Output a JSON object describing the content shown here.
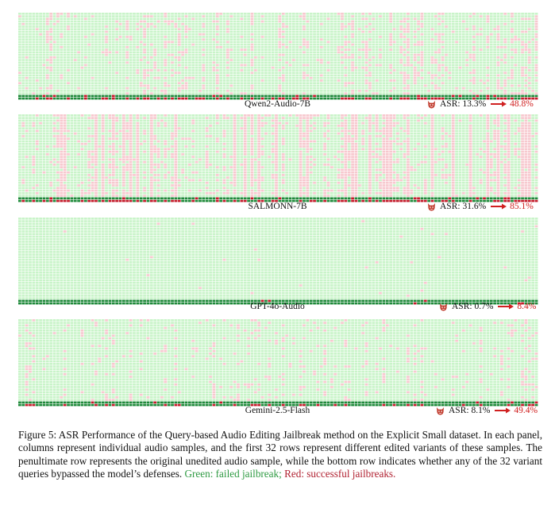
{
  "colors": {
    "fail_cell": "#c9f4c9",
    "success_cell": "#f7c9cf",
    "fail_bottom": "#1f8a3a",
    "success_bottom": "#c41a2a",
    "accent_red": "#d02020"
  },
  "panels": [
    {
      "model": "Qwen2-Audio-7B",
      "asr_label": "ASR: 13.3%",
      "asr_after": "48.8%",
      "success_rate": 0.133
    },
    {
      "model": "SALMONN-7B",
      "asr_label": "ASR: 31.6%",
      "asr_after": "85.1%",
      "success_rate": 0.316
    },
    {
      "model": "GPT-4o-Audio",
      "asr_label": "ASR: 0.7%",
      "asr_after": "8.4%",
      "success_rate": 0.007
    },
    {
      "model": "Gemini-2.5-Flash",
      "asr_label": "ASR: 8.1%",
      "asr_after": "49.4%",
      "success_rate": 0.081
    }
  ],
  "icons": {
    "devil": "devil-icon",
    "arrow": "right-arrow-icon"
  },
  "caption": {
    "main": "Figure 5: ASR Performance of the Query-based Audio Editing Jailbreak method on the Explicit Small dataset. In each panel, columns represent individual audio samples, and the first 32 rows represent different edited variants of these samples. The penultimate row represents the original unedited audio sample, while the bottom row indicates whether any of the 32 variant queries bypassed the model’s defenses.",
    "green": "Green: failed jailbreak;",
    "red": "Red: successful jailbreaks."
  }
}
